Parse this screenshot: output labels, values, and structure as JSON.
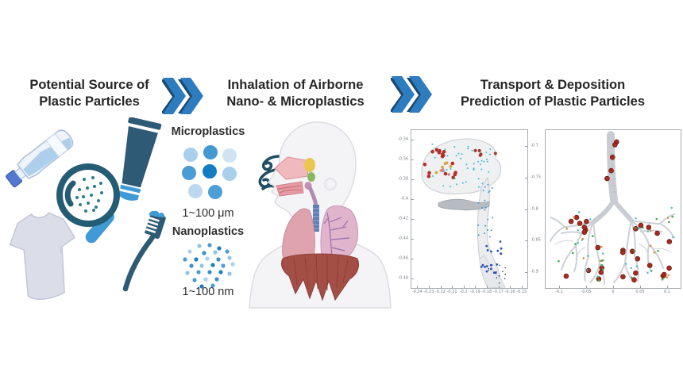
{
  "palette": {
    "chevron_blue": "#2e7cc0",
    "chevron_dark": "#1b4a70",
    "icon_dark_blue": "#2e5a75",
    "icon_mid_blue": "#3f9ad6",
    "particle_teal": "#2e7d8e",
    "title_color": "#262626"
  },
  "header": {
    "left_title": [
      "Potential Source of",
      "Plastic Particles"
    ],
    "mid_title": [
      "Inhalation of Airborne",
      "Nano- & Microplastics"
    ],
    "right_title": [
      "Transport & Deposition",
      "Prediction of Plastic Particles"
    ]
  },
  "sources": {
    "icons": [
      "water-bottle-icon",
      "cosmetic-tube-icon",
      "magnifier-particles-icon",
      "t-shirt-icon",
      "toothbrush-icon"
    ]
  },
  "mid": {
    "micro_label": "Microplastics",
    "micro_size": "1~100 μm",
    "nano_label": "Nanoplastics",
    "nano_size": "1~100 nm"
  },
  "plots": {
    "nasal": {
      "x_ticks": [
        "-0.24",
        "-0.23",
        "-0.22",
        "-0.21",
        "-0.2",
        "-0.19",
        "-0.18",
        "-0.17",
        "-0.16",
        "-0.15"
      ],
      "y_ticks_left": [
        "-0.34",
        "-0.36",
        "-0.38",
        "-0.4",
        "-0.42",
        "-0.44",
        "-0.46",
        "-0.48"
      ],
      "y_ticks_right": [
        "-0.7",
        "-0.75",
        "-0.8",
        "-0.85",
        "-0.9"
      ],
      "particles": [
        {
          "name": "olfactory-red",
          "color": "#b23127",
          "count": 16,
          "r": 2.3,
          "region": [
            16,
            24,
            42,
            36
          ]
        },
        {
          "name": "upper-red",
          "color": "#a8332a",
          "count": 5,
          "r": 2.0,
          "region": [
            80,
            18,
            26,
            14
          ]
        },
        {
          "name": "mid-orange",
          "color": "#d8a13e",
          "count": 6,
          "r": 1.8,
          "region": [
            30,
            40,
            22,
            16
          ]
        },
        {
          "name": "mid-pink",
          "color": "#d67f9a",
          "count": 3,
          "r": 1.8,
          "region": [
            34,
            44,
            16,
            12
          ]
        },
        {
          "name": "suspended-cyan",
          "color": "#3fbdd3",
          "count": 42,
          "r": 1.0,
          "region": [
            26,
            16,
            76,
            58
          ]
        },
        {
          "name": "channel-cyan",
          "color": "#4699c6",
          "count": 20,
          "r": 1.0,
          "region": [
            84,
            66,
            20,
            70
          ]
        },
        {
          "name": "pharynx-blue",
          "color": "#2b50b8",
          "count": 18,
          "r": 1.4,
          "region": [
            88,
            138,
            26,
            42
          ]
        },
        {
          "name": "bottom-specks",
          "color": "#2b3570",
          "count": 12,
          "r": 0.8,
          "region": [
            94,
            170,
            26,
            24
          ]
        }
      ]
    },
    "bronchial": {
      "x_ticks": [
        "-0.1",
        "-0.05",
        "0",
        "0.05",
        "0.1"
      ],
      "particles": [
        {
          "name": "red-left",
          "color": "#a62b1f",
          "count": 13,
          "r": 3.0,
          "region": [
            18,
            108,
            56,
            80
          ]
        },
        {
          "name": "red-right",
          "color": "#a62b1f",
          "count": 16,
          "r": 3.0,
          "region": [
            96,
            104,
            60,
            86
          ]
        },
        {
          "name": "red-trachea",
          "color": "#a62b1f",
          "count": 5,
          "r": 3.0,
          "region": [
            76,
            10,
            20,
            60
          ]
        },
        {
          "name": "green-left",
          "color": "#44a854",
          "count": 10,
          "r": 1.3,
          "region": [
            14,
            100,
            64,
            90
          ]
        },
        {
          "name": "green-right",
          "color": "#44a854",
          "count": 10,
          "r": 1.3,
          "region": [
            96,
            96,
            66,
            96
          ]
        },
        {
          "name": "cyan-left",
          "color": "#3fb9cc",
          "count": 9,
          "r": 1.2,
          "region": [
            14,
            96,
            64,
            94
          ]
        },
        {
          "name": "cyan-right",
          "color": "#3fb9cc",
          "count": 9,
          "r": 1.2,
          "region": [
            96,
            92,
            68,
            100
          ]
        },
        {
          "name": "orange-left",
          "color": "#d2913f",
          "count": 6,
          "r": 1.3,
          "region": [
            20,
            110,
            54,
            76
          ]
        },
        {
          "name": "orange-right",
          "color": "#d2913f",
          "count": 6,
          "r": 1.3,
          "region": [
            100,
            106,
            58,
            84
          ]
        }
      ]
    }
  }
}
